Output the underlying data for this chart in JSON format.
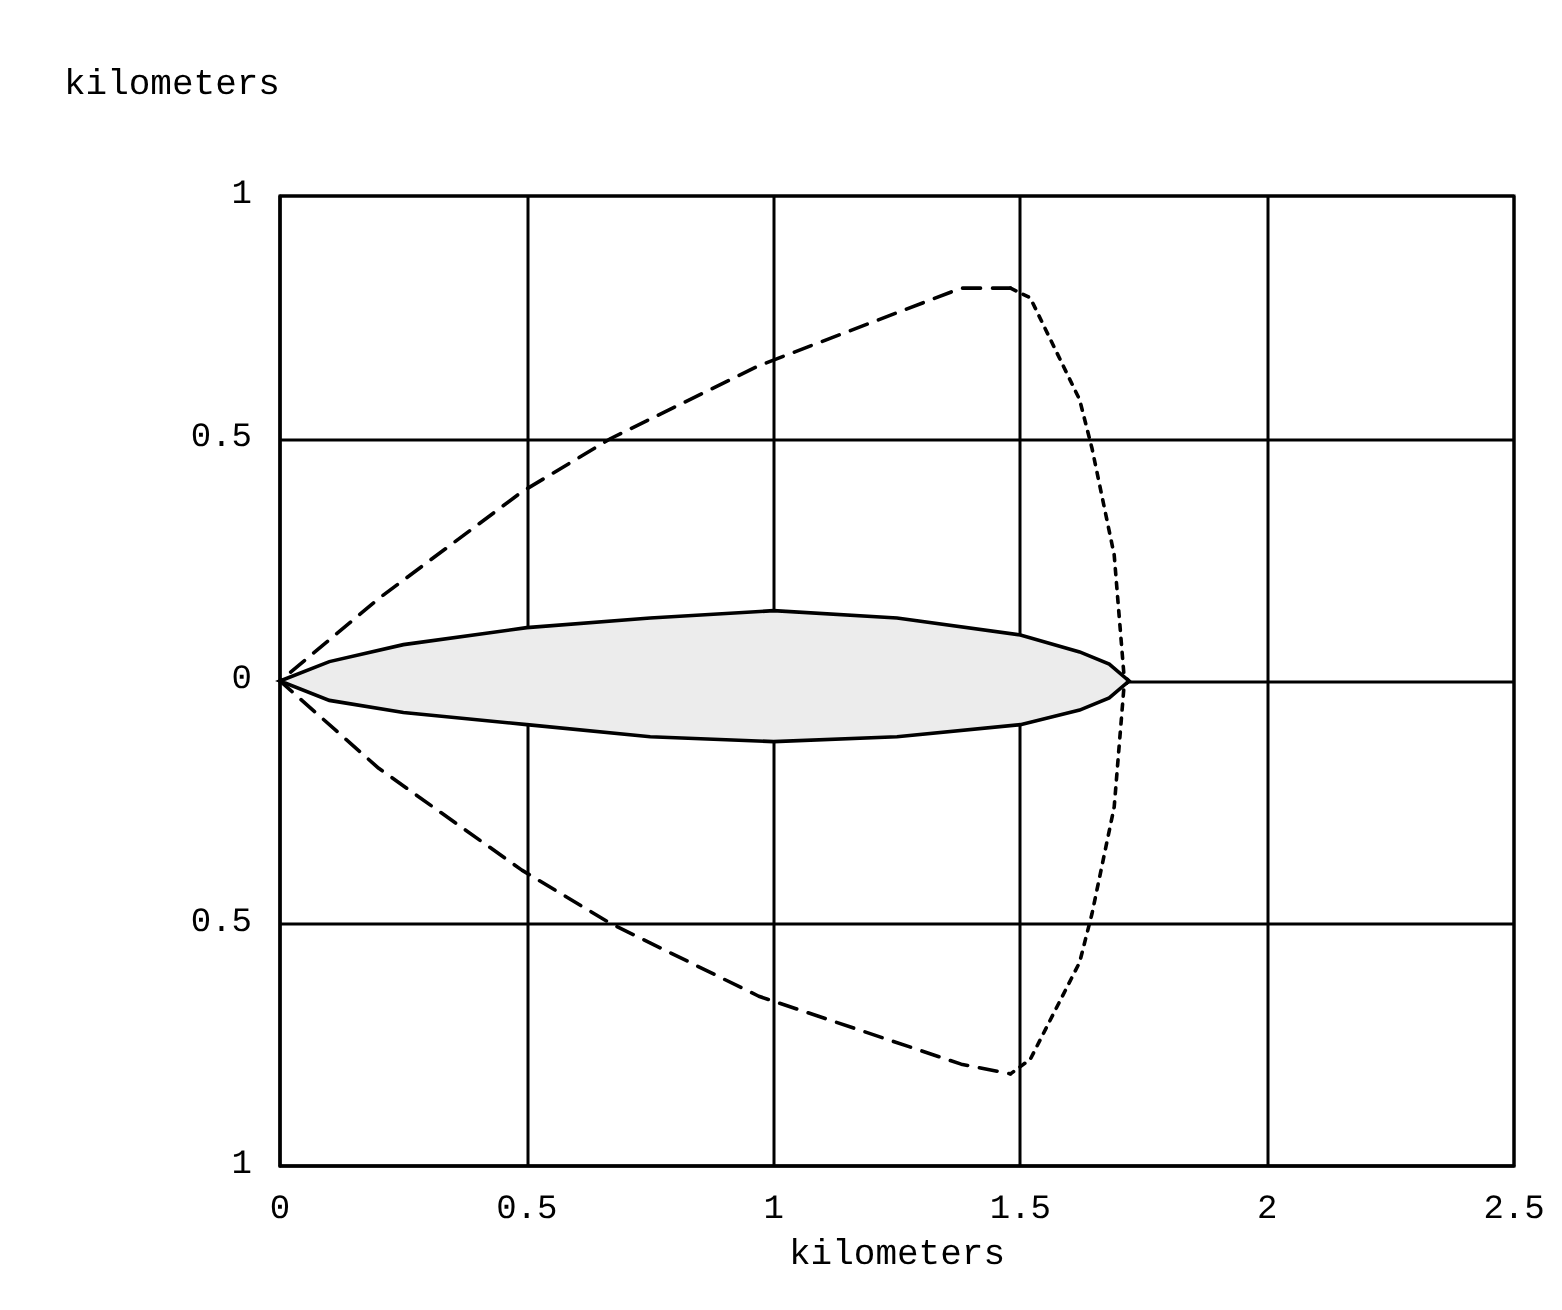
{
  "chart_data": {
    "type": "line",
    "xlabel": "kilometers",
    "ylabel": "kilometers",
    "xlim": [
      0,
      2.5
    ],
    "ylim": [
      -1,
      1
    ],
    "xticks": [
      0,
      0.5,
      1,
      1.5,
      2,
      2.5
    ],
    "yticks": [
      {
        "value": -1,
        "label": "1"
      },
      {
        "value": -0.5,
        "label": "0.5"
      },
      0,
      0.5,
      1
    ],
    "grid": true,
    "marker": "none",
    "series": [
      {
        "type": "area",
        "color": "#000000",
        "x": [
          0,
          0.1,
          0.25,
          0.5,
          0.75,
          1,
          1.25,
          1.5,
          1.62,
          1.68,
          1.72,
          1.68,
          1.62,
          1.5,
          1.25,
          1,
          0.75,
          0.5,
          0.25,
          0.1,
          0
        ],
        "values": [
          0,
          0.04,
          0.075,
          0.11,
          0.13,
          0.145,
          0.13,
          0.095,
          0.06,
          0.035,
          0,
          -0.035,
          -0.06,
          -0.09,
          -0.115,
          -0.125,
          -0.115,
          -0.09,
          -0.065,
          -0.04,
          0
        ]
      },
      {
        "color": "#000000",
        "line_style": "dashed",
        "x": [
          1.48,
          1.38,
          0.97,
          0.67,
          0.49,
          0.2,
          0,
          0.2,
          0.49,
          0.67,
          0.97,
          1.38,
          1.48
        ],
        "values": [
          0.81,
          0.81,
          0.65,
          0.5,
          0.39,
          0.17,
          0,
          -0.18,
          -0.39,
          -0.5,
          -0.65,
          -0.79,
          -0.81
        ]
      },
      {
        "color": "#000000",
        "line_style": "dotted",
        "x": [
          1.48,
          1.52,
          1.62,
          1.645,
          1.69,
          1.71,
          1.72,
          1.71,
          1.69,
          1.645,
          1.62,
          1.52,
          1.48
        ],
        "values": [
          0.81,
          0.79,
          0.58,
          0.48,
          0.26,
          0.01,
          0,
          -0.01,
          -0.26,
          -0.48,
          -0.58,
          -0.78,
          -0.81
        ]
      }
    ]
  }
}
